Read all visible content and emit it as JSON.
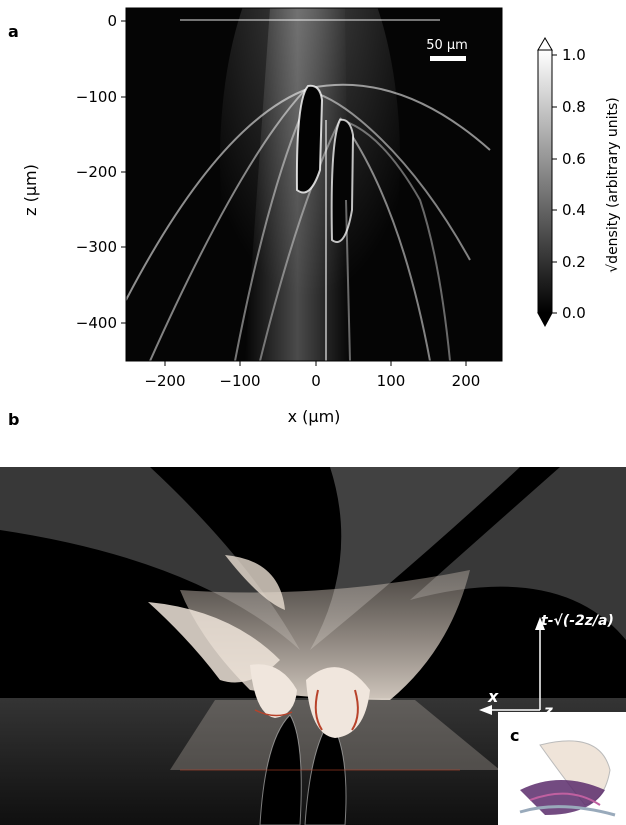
{
  "panels": {
    "a": "a",
    "b": "b",
    "c": "c"
  },
  "chart_data": {
    "type": "heatmap",
    "title": "",
    "xlabel": "x (μm)",
    "ylabel": "z (μm)",
    "xlim": [
      -250,
      250
    ],
    "ylim": [
      -450,
      10
    ],
    "x_ticks": [
      "−200",
      "−100",
      "0",
      "100",
      "200"
    ],
    "y_ticks": [
      "0",
      "−100",
      "−200",
      "−300",
      "−400"
    ],
    "scale_bar": "50 μm",
    "colorbar": {
      "label": "√density (arbitrary units)",
      "range": [
        0.0,
        1.0
      ],
      "ticks": [
        "0.0",
        "0.2",
        "0.4",
        "0.6",
        "0.8",
        "1.0"
      ],
      "colormap": "gray"
    }
  },
  "panel_b": {
    "axis_x": "x",
    "axis_z": "z",
    "axis_t": "t-√(-2z/a)",
    "colors": {
      "background": "#000000",
      "surface": "#e8dcd0",
      "caustic": "#b8422a"
    }
  }
}
